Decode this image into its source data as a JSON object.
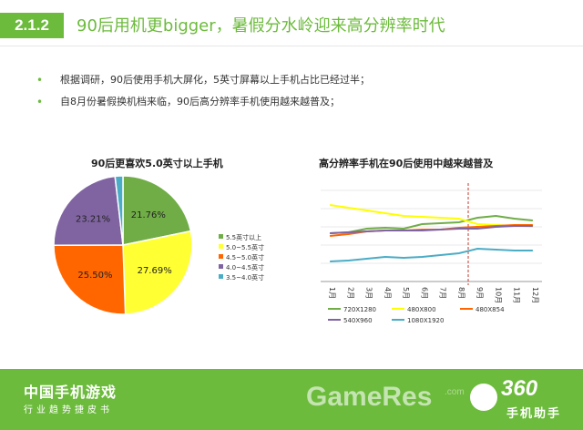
{
  "header": {
    "section_number": "2.1.2",
    "title": "90后用机更bigger，暑假分水岭迎来高分辨率时代"
  },
  "bullets": [
    "根据调研，90后使用手机大屏化，5英寸屏幕以上手机占比已经过半；",
    "自8月份暑假换机档来临，90后高分辨率手机使用越来越普及；"
  ],
  "footer": {
    "brand": "中国手机游戏",
    "tagline": "行业趋势捷皮书",
    "watermark": "GameRes",
    "watermark_suffix": ".com",
    "logo_number": "360",
    "logo_text": "手机助手"
  },
  "chart_data": [
    {
      "type": "pie",
      "title": "90后更喜欢5.0英寸以上手机",
      "slices": [
        {
          "label": "5.5英寸以上",
          "value": 21.76,
          "display": "21.76%",
          "color": "#70ad47"
        },
        {
          "label": "5.0~5.5英寸",
          "value": 27.69,
          "display": "27.69%",
          "color": "#ffff33"
        },
        {
          "label": "4.5~5.0英寸",
          "value": 25.5,
          "display": "25.50%",
          "color": "#ff6600"
        },
        {
          "label": "4.0~4.5英寸",
          "value": 23.21,
          "display": "23.21%",
          "color": "#8064a2"
        },
        {
          "label": "3.5~4.0英寸",
          "value": 1.84,
          "display": "1.84%",
          "color": "#4bacc6"
        }
      ],
      "legend_position": "right"
    },
    {
      "type": "line",
      "title": "高分辨率手机在90后使用中越来越普及",
      "categories": [
        "1月",
        "2月",
        "3月",
        "4月",
        "5月",
        "6月",
        "7月",
        "8月",
        "9月",
        "10月",
        "11月",
        "12月"
      ],
      "ylim": [
        0,
        100
      ],
      "marker_between": [
        "8月",
        "9月"
      ],
      "series": [
        {
          "name": "720X1280",
          "color": "#70ad47",
          "values": [
            53,
            54,
            58,
            59,
            58,
            63,
            64,
            65,
            70,
            72,
            69,
            67
          ]
        },
        {
          "name": "480X800",
          "color": "#ffff00",
          "values": [
            84,
            81,
            78,
            75,
            72,
            71,
            70,
            69,
            63,
            62,
            61,
            60
          ]
        },
        {
          "name": "480X854",
          "color": "#ff6600",
          "values": [
            50,
            52,
            55,
            56,
            56,
            57,
            57,
            59,
            60,
            61,
            62,
            62
          ]
        },
        {
          "name": "540X960",
          "color": "#8064a2",
          "values": [
            53,
            54,
            55,
            56,
            56,
            56,
            57,
            58,
            58,
            60,
            61,
            61
          ]
        },
        {
          "name": "1080X1920",
          "color": "#4bacc6",
          "values": [
            22,
            23,
            25,
            27,
            26,
            27,
            29,
            31,
            36,
            35,
            34,
            34
          ]
        }
      ],
      "legend_position": "bottom",
      "grid": true
    }
  ]
}
